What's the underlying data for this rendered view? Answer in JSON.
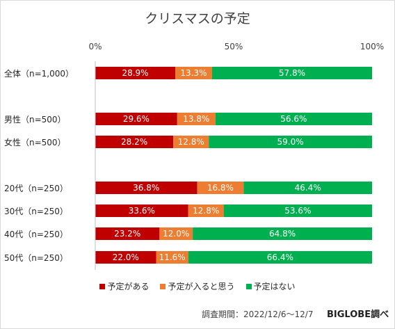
{
  "chart_data": {
    "type": "bar",
    "orientation": "horizontal",
    "stacked": true,
    "title": "クリスマスの予定",
    "xticks": [
      "0%",
      "50%",
      "100%"
    ],
    "xlim": [
      0,
      100
    ],
    "categories": [
      "全体（n=1,000）",
      "男性（n=500）",
      "女性（n=500）",
      "20代（n=250）",
      "30代（n=250）",
      "40代（n=250）",
      "50代（n=250）"
    ],
    "series": [
      {
        "name": "予定がある",
        "color": "#c00000",
        "values": [
          28.9,
          29.6,
          28.2,
          36.8,
          33.6,
          23.2,
          22.0
        ]
      },
      {
        "name": "予定が入ると思う",
        "color": "#ed7d31",
        "values": [
          13.3,
          13.8,
          12.8,
          16.8,
          12.8,
          12.0,
          11.6
        ]
      },
      {
        "name": "予定はない",
        "color": "#00b050",
        "values": [
          57.8,
          56.6,
          59.0,
          46.4,
          53.6,
          64.8,
          66.4
        ]
      }
    ],
    "legend_position": "bottom",
    "grid": false
  },
  "footer": {
    "source": "調査期間：2022/12/6～12/7",
    "brand": "BIGLOBE調べ"
  }
}
